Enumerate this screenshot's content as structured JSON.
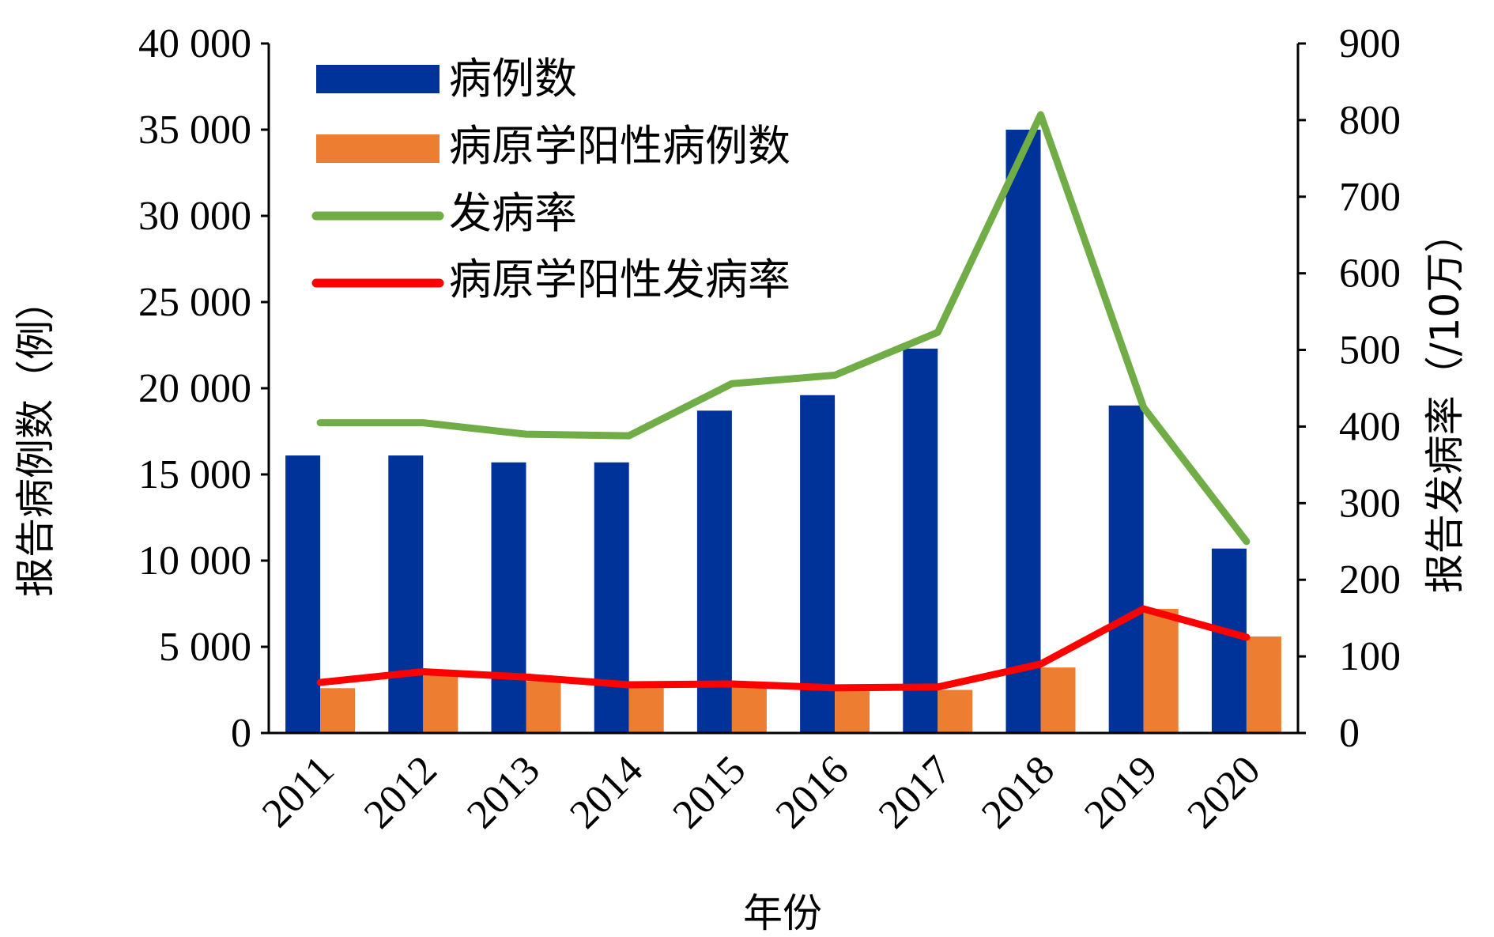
{
  "chart_data": {
    "type": "bar",
    "categories": [
      "2011",
      "2012",
      "2013",
      "2014",
      "2015",
      "2016",
      "2017",
      "2018",
      "2019",
      "2020"
    ],
    "xlabel": "年份",
    "ylabel_left": "报告病例数（例）",
    "ylabel_right": "报告发病率（/10万）",
    "ylim_left": [
      0,
      40000
    ],
    "ylim_right": [
      0,
      900
    ],
    "yticks_left": [
      0,
      5000,
      10000,
      15000,
      20000,
      25000,
      30000,
      35000,
      40000
    ],
    "yticks_left_labels": [
      "0",
      "5 000",
      "10 000",
      "15 000",
      "20 000",
      "25 000",
      "30 000",
      "35 000",
      "40 000"
    ],
    "yticks_right": [
      0,
      100,
      200,
      300,
      400,
      500,
      600,
      700,
      800,
      900
    ],
    "yticks_right_labels": [
      "0",
      "100",
      "200",
      "300",
      "400",
      "500",
      "600",
      "700",
      "800",
      "900"
    ],
    "legend_position": "top-left",
    "grid": false,
    "series": [
      {
        "name": "病例数",
        "type": "bar",
        "axis": "left",
        "color": "#003399",
        "values": [
          16100,
          16100,
          15700,
          15700,
          18700,
          19600,
          22300,
          35000,
          19000,
          10700
        ]
      },
      {
        "name": "病原学阳性病例数",
        "type": "bar",
        "axis": "left",
        "color": "#ED7D31",
        "values": [
          2600,
          3400,
          3000,
          2700,
          2700,
          2600,
          2500,
          3800,
          7200,
          5600
        ]
      },
      {
        "name": "发病率",
        "type": "line",
        "axis": "right",
        "color": "#70AD47",
        "values": [
          405,
          405,
          390,
          388,
          456,
          467,
          523,
          807,
          425,
          250
        ]
      },
      {
        "name": "病原学阳性发病率",
        "type": "line",
        "axis": "right",
        "color": "#FF0000",
        "values": [
          66,
          80,
          73,
          63,
          64,
          59,
          60,
          90,
          162,
          125
        ]
      }
    ]
  }
}
